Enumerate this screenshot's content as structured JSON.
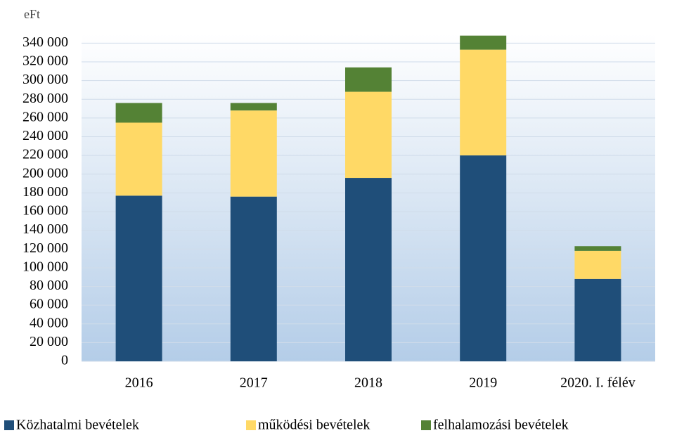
{
  "chart_data": {
    "type": "bar",
    "stacked": true,
    "y_unit_label": "eFt",
    "categories": [
      "2016",
      "2017",
      "2018",
      "2019",
      "2020. I. félév"
    ],
    "series": [
      {
        "name": "Közhatalmi bevételek",
        "color": "#1f4e79",
        "values": [
          177000,
          176000,
          196000,
          220000,
          88000
        ]
      },
      {
        "name": "működési bevételek",
        "color": "#ffd966",
        "values": [
          78000,
          92000,
          92000,
          113000,
          30000
        ]
      },
      {
        "name": "felhalamozási bevételek",
        "color": "#548235",
        "values": [
          21000,
          8000,
          26000,
          15000,
          5000
        ]
      }
    ],
    "ylim": [
      0,
      350000
    ],
    "yticks": [
      0,
      {
        "value": 20000,
        "label": "20 000"
      },
      {
        "value": 40000,
        "label": "40 000"
      },
      {
        "value": 60000,
        "label": "60 000"
      },
      {
        "value": 80000,
        "label": "80 000"
      },
      {
        "value": 100000,
        "label": "100 000"
      },
      {
        "value": 120000,
        "label": "120 000"
      },
      {
        "value": 140000,
        "label": "140 000"
      },
      {
        "value": 160000,
        "label": "160 000"
      },
      {
        "value": 180000,
        "label": "180 000"
      },
      {
        "value": 200000,
        "label": "200 000"
      },
      {
        "value": 220000,
        "label": "220 000"
      },
      {
        "value": 240000,
        "label": "240 000"
      },
      {
        "value": 260000,
        "label": "260 000"
      },
      {
        "value": 280000,
        "label": "280 000"
      },
      {
        "value": 300000,
        "label": "300 000"
      },
      {
        "value": 320000,
        "label": "320 000"
      },
      {
        "value": 340000,
        "label": "340 000"
      }
    ],
    "grid": true,
    "legend": "bottom"
  }
}
